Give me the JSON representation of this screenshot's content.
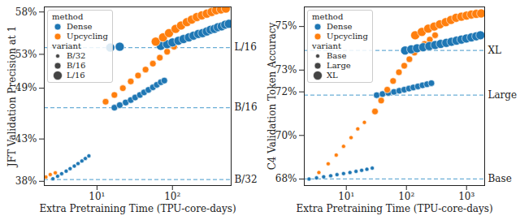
{
  "chart_data": [
    {
      "type": "scatter",
      "xlabel": "Extra Pretraining Time (TPU-core-days)",
      "ylabel": "JFT Validation Precision at 1",
      "log": "x",
      "grid": false,
      "legend": "upper left",
      "legend_titles": [
        "method",
        "variant"
      ],
      "xlim": [
        2,
        600
      ],
      "xticks": [
        {
          "value": 10,
          "label": "10¹"
        },
        {
          "value": 100,
          "label": "10²"
        }
      ],
      "ylim": [
        37.5,
        58.6
      ],
      "yticks": [
        {
          "value": 38,
          "label": "38%"
        },
        {
          "value": 43,
          "label": "43%"
        },
        {
          "value": 49,
          "label": "49%"
        },
        {
          "value": 53,
          "label": "53%"
        },
        {
          "value": 58,
          "label": "58%"
        }
      ],
      "reference_lines": [
        {
          "label": "B/32",
          "value": 38.2,
          "line_style": "dashed",
          "color": "#6baed6"
        },
        {
          "label": "B/16",
          "value": 46.7,
          "line_style": "dashed",
          "color": "#6baed6"
        },
        {
          "label": "L/16",
          "value": 53.8,
          "line_style": "dashed",
          "color": "#6baed6"
        }
      ],
      "series": [
        {
          "name": "Dense",
          "variant": "B/32",
          "color": "#1f77b4",
          "x": [
            2.6,
            3.0,
            3.4,
            3.9,
            4.4,
            5.0,
            5.6,
            6.3,
            7.0,
            7.8
          ],
          "values": [
            38.3,
            38.6,
            38.9,
            39.2,
            39.5,
            39.8,
            40.1,
            40.4,
            40.7,
            41.0
          ]
        },
        {
          "name": "Upcycling",
          "variant": "B/32",
          "color": "#ff7f0e",
          "x": [
            2.1,
            2.4,
            2.8
          ],
          "values": [
            38.5,
            38.8,
            39.0
          ]
        },
        {
          "name": "Dense",
          "variant": "B/16",
          "color": "#1f77b4",
          "x": [
            17,
            20,
            24,
            28,
            32,
            37,
            42,
            48,
            55,
            62,
            70,
            78
          ],
          "values": [
            46.7,
            47.0,
            47.3,
            47.6,
            47.9,
            48.2,
            48.5,
            48.8,
            49.1,
            49.4,
            49.7,
            49.9
          ]
        },
        {
          "name": "Upcycling",
          "variant": "B/16",
          "color": "#ff7f0e",
          "x": [
            13,
            17,
            22,
            28,
            35,
            44,
            55,
            68,
            85,
            105
          ],
          "values": [
            47.4,
            48.2,
            49.0,
            49.8,
            50.5,
            51.2,
            51.9,
            52.6,
            53.3,
            53.9
          ]
        },
        {
          "name": "Dense",
          "variant": "L/16",
          "color": "#1f77b4",
          "x": [
            15,
            20,
            70,
            85,
            100,
            120,
            140,
            165,
            190,
            220,
            250,
            285,
            320,
            360,
            400,
            450,
            500,
            560
          ],
          "values": [
            53.8,
            53.9,
            54.0,
            54.2,
            54.4,
            54.6,
            54.8,
            55.0,
            55.2,
            55.4,
            55.5,
            55.7,
            55.9,
            56.0,
            56.2,
            56.3,
            56.5,
            56.6
          ]
        },
        {
          "name": "Upcycling",
          "variant": "L/16",
          "color": "#ff7f0e",
          "x": [
            60,
            75,
            90,
            110,
            130,
            155,
            180,
            210,
            245,
            285,
            330,
            380,
            440,
            510
          ],
          "values": [
            54.5,
            55.0,
            55.5,
            56.0,
            56.4,
            56.8,
            57.1,
            57.4,
            57.6,
            57.8,
            58.0,
            58.2,
            58.3,
            58.4
          ]
        }
      ]
    },
    {
      "type": "scatter",
      "xlabel": "Extra Pretraining Time (TPU-core-days)",
      "ylabel": "C4 Validation Token Accuracy",
      "log": "x",
      "grid": false,
      "legend": "upper left",
      "legend_titles": [
        "method",
        "variant"
      ],
      "xlim": [
        2,
        2000
      ],
      "xticks": [
        {
          "value": 10,
          "label": "10¹"
        },
        {
          "value": 100,
          "label": "10²"
        },
        {
          "value": 1000,
          "label": "10³"
        }
      ],
      "ylim": [
        67.7,
        75.9
      ],
      "yticks": [
        {
          "value": 68,
          "label": "68%"
        },
        {
          "value": 70,
          "label": "70%"
        },
        {
          "value": 72,
          "label": "72%"
        },
        {
          "value": 73,
          "label": "73%"
        },
        {
          "value": 75,
          "label": "75%"
        }
      ],
      "reference_lines": [
        {
          "label": "Base",
          "value": 68.0,
          "line_style": "dashed",
          "color": "#6baed6"
        },
        {
          "label": "Large",
          "value": 71.85,
          "line_style": "dashed",
          "color": "#6baed6"
        },
        {
          "label": "XL",
          "value": 73.9,
          "line_style": "dashed",
          "color": "#6baed6"
        }
      ],
      "series": [
        {
          "name": "Dense",
          "variant": "Base",
          "color": "#1f77b4",
          "x": [
            2.4,
            3.2,
            4.2,
            5.5,
            7,
            9,
            11.5,
            14.5,
            18,
            22,
            27
          ],
          "values": [
            68.0,
            68.05,
            68.1,
            68.15,
            68.2,
            68.25,
            68.3,
            68.35,
            68.4,
            68.45,
            68.5
          ]
        },
        {
          "name": "Upcycling",
          "variant": "Base",
          "color": "#ff7f0e",
          "x": [
            3.5,
            5,
            6.8,
            9,
            12,
            15.5,
            20
          ],
          "values": [
            68.3,
            68.7,
            69.1,
            69.5,
            69.9,
            70.3,
            70.6
          ]
        },
        {
          "name": "Dense",
          "variant": "Large",
          "color": "#1f77b4",
          "x": [
            32,
            40,
            50,
            62,
            76,
            92,
            110,
            130,
            155,
            185,
            220,
            260
          ],
          "values": [
            71.85,
            71.9,
            71.95,
            72.0,
            72.05,
            72.1,
            72.15,
            72.2,
            72.25,
            72.3,
            72.35,
            72.4
          ]
        },
        {
          "name": "Upcycling",
          "variant": "Large",
          "color": "#ff7f0e",
          "x": [
            30,
            38,
            48,
            60,
            75,
            92,
            112,
            136,
            165,
            200,
            245,
            300
          ],
          "values": [
            71.1,
            71.6,
            72.1,
            72.5,
            72.9,
            73.2,
            73.5,
            73.8,
            74.0,
            74.2,
            74.4,
            74.6
          ]
        },
        {
          "name": "Dense",
          "variant": "XL",
          "color": "#1f77b4",
          "x": [
            95,
            120,
            150,
            190,
            240,
            300,
            370,
            460,
            560,
            680,
            820,
            990,
            1200,
            1450,
            1700
          ],
          "values": [
            73.9,
            73.95,
            74.0,
            74.05,
            74.1,
            74.15,
            74.2,
            74.25,
            74.3,
            74.35,
            74.4,
            74.45,
            74.5,
            74.55,
            74.6
          ]
        },
        {
          "name": "Upcycling",
          "variant": "XL",
          "color": "#ff7f0e",
          "x": [
            140,
            180,
            230,
            290,
            360,
            450,
            550,
            670,
            820,
            1000,
            1200,
            1450,
            1750
          ],
          "values": [
            74.6,
            74.75,
            74.9,
            75.0,
            75.1,
            75.2,
            75.3,
            75.4,
            75.45,
            75.5,
            75.55,
            75.58,
            75.6
          ]
        }
      ]
    }
  ]
}
